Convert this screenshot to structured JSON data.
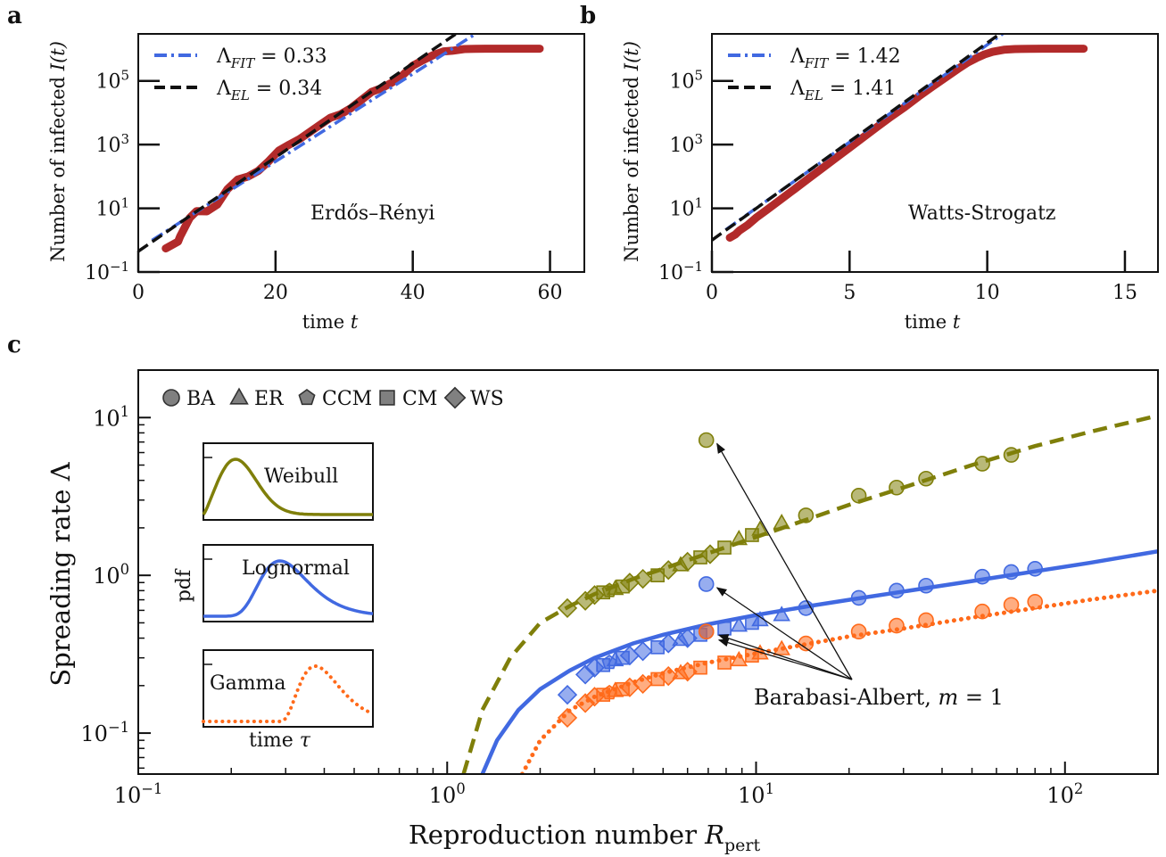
{
  "colors": {
    "olive": "#7f7f0a",
    "blue": "#4169e1",
    "orange": "#ff6a1a",
    "red": "#b22a2a",
    "black": "#111111",
    "marker_gray": "#808080"
  },
  "panel_letters": {
    "a": "a",
    "b": "b",
    "c": "c"
  },
  "chart_data": [
    {
      "type": "line",
      "panel": "a",
      "title": "",
      "xlabel": "time t",
      "ylabel": "Number of infected I(t)",
      "xscale": "linear",
      "yscale": "log",
      "xlim": [
        0,
        65
      ],
      "ylim": [
        0.1,
        3000000
      ],
      "xticks": [
        0,
        20,
        40,
        60
      ],
      "xtick_labels": [
        "0",
        "20",
        "40",
        "60"
      ],
      "yticks": [
        0.1,
        10,
        1000,
        100000
      ],
      "ytick_labels": [
        "10",
        "10",
        "10",
        "10"
      ],
      "ytick_exponents": [
        "−1",
        "1",
        "3",
        "5"
      ],
      "annotation": "Erdős–Rényi",
      "legend_position": "top-left",
      "legend": [
        {
          "label": "Λ",
          "sub": "FIT",
          "value": " = 0.33",
          "style": "dash-dot",
          "color": "blue"
        },
        {
          "label": "Λ",
          "sub": "EL",
          "value": " = 0.34",
          "style": "dashed",
          "color": "black"
        }
      ],
      "fit_lines": {
        "fit": {
          "intercept_log10": -0.28,
          "slope_log10_per_t": 0.1375,
          "x": [
            2,
            51
          ]
        },
        "el": {
          "intercept_log10": -0.35,
          "slope_log10_per_t": 0.1475,
          "x": [
            0,
            50.5
          ]
        }
      },
      "series": [
        {
          "name": "simulation",
          "x": [
            4,
            5.8,
            6.1,
            7.5,
            8.5,
            10,
            11.5,
            13,
            14.5,
            16,
            17.5,
            19,
            20.5,
            22,
            23.5,
            25,
            26.5,
            28,
            29.5,
            31,
            32.5,
            34,
            35.5,
            37,
            38.5,
            40,
            41.5,
            43,
            44.5,
            46,
            47.5,
            49,
            50.5,
            52,
            54,
            56,
            58.5
          ],
          "y": [
            0.55,
            0.9,
            1.3,
            5,
            8.2,
            8,
            13,
            40,
            80,
            100,
            150,
            300,
            650,
            1000,
            1500,
            2500,
            4200,
            7000,
            9000,
            14000,
            25000,
            45000,
            60000,
            90000,
            150000,
            300000,
            450000,
            650000,
            850000,
            900000,
            1000000,
            1020000,
            1030000,
            1030000,
            1030000,
            1030000,
            1030000
          ]
        }
      ]
    },
    {
      "type": "line",
      "panel": "b",
      "title": "",
      "xlabel": "time t",
      "ylabel": "Number of infected I(t)",
      "xscale": "linear",
      "yscale": "log",
      "xlim": [
        0,
        16.2
      ],
      "ylim": [
        0.1,
        3000000
      ],
      "xticks": [
        0,
        5,
        10,
        15
      ],
      "xtick_labels": [
        "0",
        "5",
        "10",
        "15"
      ],
      "yticks": [
        0.1,
        10,
        1000,
        100000
      ],
      "ytick_labels": [
        "10",
        "10",
        "10",
        "10"
      ],
      "ytick_exponents": [
        "−1",
        "1",
        "3",
        "5"
      ],
      "annotation": "Watts-Strogatz",
      "legend_position": "top-left",
      "legend": [
        {
          "label": "Λ",
          "sub": "FIT",
          "value": " = 1.42",
          "style": "dash-dot",
          "color": "blue"
        },
        {
          "label": "Λ",
          "sub": "EL",
          "value": " = 1.41",
          "style": "dashed",
          "color": "black"
        }
      ],
      "fit_lines": {
        "fit": {
          "intercept_log10": 0.02,
          "slope_log10_per_t": 0.6115,
          "x": [
            0.5,
            11.5
          ]
        },
        "el": {
          "intercept_log10": 0.0,
          "slope_log10_per_t": 0.6195,
          "x": [
            0,
            11.3
          ]
        }
      },
      "series": [
        {
          "name": "simulation",
          "x": [
            0.65,
            0.85,
            1.0,
            1.3,
            1.6,
            2,
            2.5,
            3,
            3.5,
            4,
            4.5,
            5,
            5.5,
            6,
            6.5,
            7,
            7.5,
            8,
            8.5,
            9,
            9.3,
            9.6,
            9.9,
            10.2,
            10.6,
            11,
            11.5,
            12,
            12.5,
            13,
            13.5
          ],
          "y": [
            1.2,
            1.5,
            2,
            3,
            5,
            9,
            19,
            40,
            85,
            180,
            380,
            800,
            1700,
            3600,
            7500,
            15000,
            32000,
            65000,
            130000,
            260000,
            380000,
            520000,
            680000,
            820000,
            950000,
            1000000,
            1020000,
            1030000,
            1030000,
            1030000,
            1030000
          ]
        }
      ]
    },
    {
      "type": "scatter",
      "panel": "c",
      "title": "",
      "xlabel": "Reproduction number R",
      "xlabel_sub": "pert",
      "ylabel": "Spreading rate Λ",
      "xscale": "log",
      "yscale": "log",
      "xlim": [
        0.1,
        200
      ],
      "ylim": [
        0.055,
        20
      ],
      "xticks": [
        0.1,
        1,
        10,
        100
      ],
      "xtick_labels": [
        "10",
        "10",
        "10",
        "10"
      ],
      "xtick_exponents": [
        "−1",
        "0",
        "1",
        "2"
      ],
      "yticks": [
        0.1,
        1,
        10
      ],
      "ytick_labels": [
        "10",
        "10",
        "10"
      ],
      "ytick_exponents": [
        "−1",
        "0",
        "1"
      ],
      "legend_position": "top-left",
      "marker_legend": [
        {
          "marker": "circle",
          "label": "BA"
        },
        {
          "marker": "triangle",
          "label": "ER"
        },
        {
          "marker": "pentagon",
          "label": "CCM"
        },
        {
          "marker": "square",
          "label": "CM"
        },
        {
          "marker": "diamond",
          "label": "WS"
        }
      ],
      "annotation": "Barabasi-Albert, m = 1",
      "insets": [
        {
          "label": "Weibull",
          "color": "olive"
        },
        {
          "label": "Lognormal",
          "color": "blue"
        },
        {
          "label": "Gamma",
          "color": "orange"
        }
      ],
      "inset_ylabel": "pdf",
      "inset_xlabel": "time τ",
      "series": [
        {
          "name": "Weibull",
          "color": "olive",
          "curve": "dashed",
          "curve_x": [
            1.13,
            1.3,
            1.6,
            2,
            2.5,
            3,
            4,
            5,
            7,
            10,
            15,
            20,
            30,
            50,
            80,
            120,
            200
          ],
          "curve_y": [
            0.055,
            0.14,
            0.3,
            0.5,
            0.64,
            0.76,
            0.95,
            1.1,
            1.38,
            1.75,
            2.3,
            2.8,
            3.6,
            5.0,
            6.6,
            8.1,
            10.3
          ],
          "points": [
            {
              "m": "diamond",
              "x": 2.45,
              "y": 0.62
            },
            {
              "m": "diamond",
              "x": 2.8,
              "y": 0.69
            },
            {
              "m": "diamond",
              "x": 3.0,
              "y": 0.75
            },
            {
              "m": "square",
              "x": 3.2,
              "y": 0.78
            },
            {
              "m": "pentagon",
              "x": 3.35,
              "y": 0.8
            },
            {
              "m": "triangle",
              "x": 3.5,
              "y": 0.82
            },
            {
              "m": "square",
              "x": 3.7,
              "y": 0.85
            },
            {
              "m": "diamond",
              "x": 3.9,
              "y": 0.9
            },
            {
              "m": "diamond",
              "x": 4.3,
              "y": 0.95
            },
            {
              "m": "square",
              "x": 4.8,
              "y": 1.0
            },
            {
              "m": "diamond",
              "x": 5.2,
              "y": 1.08
            },
            {
              "m": "triangle",
              "x": 5.7,
              "y": 1.16
            },
            {
              "m": "diamond",
              "x": 6.0,
              "y": 1.22
            },
            {
              "m": "square",
              "x": 6.6,
              "y": 1.3
            },
            {
              "m": "diamond",
              "x": 7.1,
              "y": 1.36
            },
            {
              "m": "square",
              "x": 7.9,
              "y": 1.5
            },
            {
              "m": "triangle",
              "x": 8.8,
              "y": 1.7
            },
            {
              "m": "square",
              "x": 9.7,
              "y": 1.8
            },
            {
              "m": "triangle",
              "x": 10.3,
              "y": 1.95
            },
            {
              "m": "triangle",
              "x": 12.1,
              "y": 2.15
            },
            {
              "m": "circle",
              "x": 14.5,
              "y": 2.4
            },
            {
              "m": "circle",
              "x": 21.5,
              "y": 3.2
            },
            {
              "m": "circle",
              "x": 28.5,
              "y": 3.6
            },
            {
              "m": "circle",
              "x": 35.5,
              "y": 4.1
            },
            {
              "m": "circle",
              "x": 54,
              "y": 5.1
            },
            {
              "m": "circle",
              "x": 67,
              "y": 5.8
            },
            {
              "m": "circle",
              "x": 6.9,
              "y": 7.2
            }
          ]
        },
        {
          "name": "Lognormal",
          "color": "blue",
          "curve": "solid",
          "curve_x": [
            1.3,
            1.45,
            1.7,
            2,
            2.5,
            3,
            4,
            5,
            7,
            10,
            15,
            20,
            30,
            50,
            80,
            120,
            200
          ],
          "curve_y": [
            0.055,
            0.09,
            0.14,
            0.19,
            0.25,
            0.3,
            0.37,
            0.42,
            0.49,
            0.56,
            0.64,
            0.7,
            0.79,
            0.92,
            1.06,
            1.2,
            1.42
          ],
          "points": [
            {
              "m": "diamond",
              "x": 2.45,
              "y": 0.175
            },
            {
              "m": "diamond",
              "x": 2.8,
              "y": 0.235
            },
            {
              "m": "diamond",
              "x": 3.0,
              "y": 0.26
            },
            {
              "m": "square",
              "x": 3.2,
              "y": 0.27
            },
            {
              "m": "pentagon",
              "x": 3.35,
              "y": 0.28
            },
            {
              "m": "triangle",
              "x": 3.5,
              "y": 0.29
            },
            {
              "m": "square",
              "x": 3.7,
              "y": 0.3
            },
            {
              "m": "diamond",
              "x": 3.9,
              "y": 0.31
            },
            {
              "m": "diamond",
              "x": 4.3,
              "y": 0.33
            },
            {
              "m": "square",
              "x": 4.8,
              "y": 0.35
            },
            {
              "m": "diamond",
              "x": 5.2,
              "y": 0.37
            },
            {
              "m": "triangle",
              "x": 5.7,
              "y": 0.39
            },
            {
              "m": "diamond",
              "x": 6.0,
              "y": 0.4
            },
            {
              "m": "square",
              "x": 6.6,
              "y": 0.42
            },
            {
              "m": "circle",
              "x": 6.9,
              "y": 0.44
            },
            {
              "m": "square",
              "x": 7.9,
              "y": 0.46
            },
            {
              "m": "triangle",
              "x": 8.8,
              "y": 0.48
            },
            {
              "m": "square",
              "x": 9.7,
              "y": 0.5
            },
            {
              "m": "triangle",
              "x": 10.3,
              "y": 0.52
            },
            {
              "m": "triangle",
              "x": 12.1,
              "y": 0.56
            },
            {
              "m": "circle",
              "x": 14.5,
              "y": 0.62
            },
            {
              "m": "circle",
              "x": 21.5,
              "y": 0.72
            },
            {
              "m": "circle",
              "x": 28.5,
              "y": 0.8
            },
            {
              "m": "circle",
              "x": 35.5,
              "y": 0.86
            },
            {
              "m": "circle",
              "x": 54,
              "y": 0.98
            },
            {
              "m": "circle",
              "x": 67,
              "y": 1.05
            },
            {
              "m": "circle",
              "x": 80,
              "y": 1.1
            },
            {
              "m": "circle",
              "x": 6.9,
              "y": 0.88
            }
          ]
        },
        {
          "name": "Gamma",
          "color": "orange",
          "curve": "dotted",
          "curve_x": [
            1.75,
            2,
            2.5,
            3,
            4,
            5,
            7,
            10,
            15,
            20,
            30,
            50,
            80,
            120,
            200
          ],
          "curve_y": [
            0.055,
            0.09,
            0.14,
            0.17,
            0.21,
            0.24,
            0.28,
            0.32,
            0.37,
            0.41,
            0.46,
            0.54,
            0.62,
            0.7,
            0.8
          ],
          "points": [
            {
              "m": "diamond",
              "x": 2.45,
              "y": 0.125
            },
            {
              "m": "diamond",
              "x": 2.8,
              "y": 0.155
            },
            {
              "m": "diamond",
              "x": 3.0,
              "y": 0.17
            },
            {
              "m": "square",
              "x": 3.2,
              "y": 0.175
            },
            {
              "m": "pentagon",
              "x": 3.35,
              "y": 0.18
            },
            {
              "m": "triangle",
              "x": 3.5,
              "y": 0.185
            },
            {
              "m": "square",
              "x": 3.7,
              "y": 0.19
            },
            {
              "m": "diamond",
              "x": 3.9,
              "y": 0.195
            },
            {
              "m": "diamond",
              "x": 4.3,
              "y": 0.205
            },
            {
              "m": "square",
              "x": 4.8,
              "y": 0.22
            },
            {
              "m": "diamond",
              "x": 5.2,
              "y": 0.23
            },
            {
              "m": "triangle",
              "x": 5.7,
              "y": 0.24
            },
            {
              "m": "diamond",
              "x": 6.0,
              "y": 0.245
            },
            {
              "m": "square",
              "x": 6.6,
              "y": 0.26
            },
            {
              "m": "circle",
              "x": 6.9,
              "y": 0.44
            },
            {
              "m": "square",
              "x": 7.9,
              "y": 0.28
            },
            {
              "m": "triangle",
              "x": 8.8,
              "y": 0.29
            },
            {
              "m": "square",
              "x": 9.7,
              "y": 0.31
            },
            {
              "m": "triangle",
              "x": 10.3,
              "y": 0.32
            },
            {
              "m": "triangle",
              "x": 12.1,
              "y": 0.34
            },
            {
              "m": "circle",
              "x": 14.5,
              "y": 0.37
            },
            {
              "m": "circle",
              "x": 21.5,
              "y": 0.44
            },
            {
              "m": "circle",
              "x": 28.5,
              "y": 0.48
            },
            {
              "m": "circle",
              "x": 35.5,
              "y": 0.52
            },
            {
              "m": "circle",
              "x": 54,
              "y": 0.59
            },
            {
              "m": "circle",
              "x": 67,
              "y": 0.65
            },
            {
              "m": "circle",
              "x": 80,
              "y": 0.68
            }
          ]
        }
      ]
    }
  ]
}
